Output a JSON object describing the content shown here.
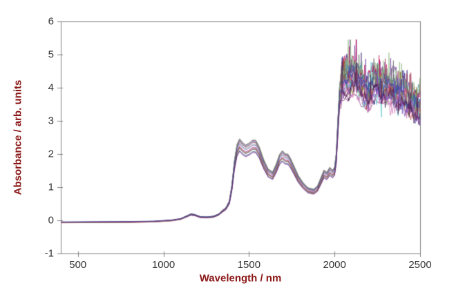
{
  "figure": {
    "background": "#ffffff",
    "axis_label_color": "#8b1717",
    "tick_label_color": "#333333",
    "spine_color": "#808080"
  },
  "chart_data": {
    "type": "line",
    "title": "",
    "xlabel": "Wavelength / nm",
    "ylabel": "Absorbance / arb. units",
    "xlim": [
      400,
      2500
    ],
    "ylim": [
      -1,
      6
    ],
    "xticks": [
      500,
      1000,
      1500,
      2000,
      2500
    ],
    "yticks": [
      -1,
      0,
      1,
      2,
      3,
      4,
      5,
      6
    ],
    "grid": false,
    "legend": "none",
    "description": "Ensemble of ~17 overlaid vis-NIR absorbance spectra: flat near 0 from 400-1100 nm, small band at ~1160 nm, strong double band at 1440/1540 nm (~2.3), band at ~1690 nm (~2.0), minimum ~0.9 at 1880 nm, small double bump near 1940-1980 nm, sharp step at ~2020 nm up to a very noisy spiky region (4-5.3) declining to ~3.5 at 2500 nm; one low outlier trace near 3.6 between 2050-2200 nm",
    "n_spectra": 17,
    "base_spectrum": {
      "wavelength_nm": [
        400,
        600,
        800,
        950,
        1050,
        1100,
        1135,
        1160,
        1185,
        1215,
        1250,
        1290,
        1320,
        1345,
        1365,
        1385,
        1400,
        1415,
        1430,
        1445,
        1462,
        1480,
        1500,
        1522,
        1540,
        1560,
        1585,
        1612,
        1638,
        1658,
        1678,
        1695,
        1712,
        1728,
        1742,
        1762,
        1788,
        1815,
        1845,
        1878,
        1900,
        1918,
        1938,
        1955,
        1972,
        1988,
        2000,
        2010,
        2020,
        2030,
        2045,
        2060,
        2080,
        2100,
        2125,
        2150,
        2175,
        2195,
        2212,
        2232,
        2255,
        2280,
        2305,
        2330,
        2355,
        2380,
        2405,
        2430,
        2455,
        2480,
        2500
      ],
      "absorbance": [
        -0.06,
        -0.055,
        -0.05,
        -0.035,
        0.0,
        0.04,
        0.12,
        0.18,
        0.16,
        0.1,
        0.09,
        0.11,
        0.17,
        0.28,
        0.36,
        0.55,
        1.0,
        1.7,
        2.15,
        2.31,
        2.2,
        2.13,
        2.18,
        2.27,
        2.26,
        2.08,
        1.73,
        1.45,
        1.37,
        1.58,
        1.86,
        1.97,
        1.88,
        1.87,
        1.76,
        1.55,
        1.27,
        1.07,
        0.92,
        0.88,
        0.97,
        1.18,
        1.42,
        1.36,
        1.5,
        1.42,
        1.5,
        1.9,
        2.9,
        3.85,
        4.28,
        4.4,
        4.28,
        4.36,
        4.42,
        4.2,
        4.02,
        3.86,
        4.05,
        4.18,
        4.12,
        4.05,
        4.1,
        3.94,
        3.98,
        3.82,
        3.84,
        3.68,
        3.62,
        3.55,
        3.5
      ]
    },
    "ensemble": {
      "scale_min": 0.9,
      "scale_max": 1.07,
      "offset_jitter": 0.03,
      "noise_start_nm": 2035,
      "walk_amplitude": 0.13,
      "spike_probability": 0.055,
      "spike_max": 0.95,
      "spike_down_fraction": 0.22,
      "spike_decay_end": 0.62,
      "absorbance_cap": 5.45,
      "outlier_index": 3,
      "outlier_scale": 0.845,
      "highlight_top_index": 10
    },
    "palette": [
      "#46287c",
      "#6a3d9a",
      "#2b3990",
      "#8e4585",
      "#b03a8c",
      "#c2185b",
      "#a23b52",
      "#b5453c",
      "#2e8b8b",
      "#4fc3c3",
      "#93bb84",
      "#8a7b2c",
      "#6e6e6e",
      "#d077b8",
      "#3949ab",
      "#7e57c2",
      "#551a4e"
    ]
  }
}
